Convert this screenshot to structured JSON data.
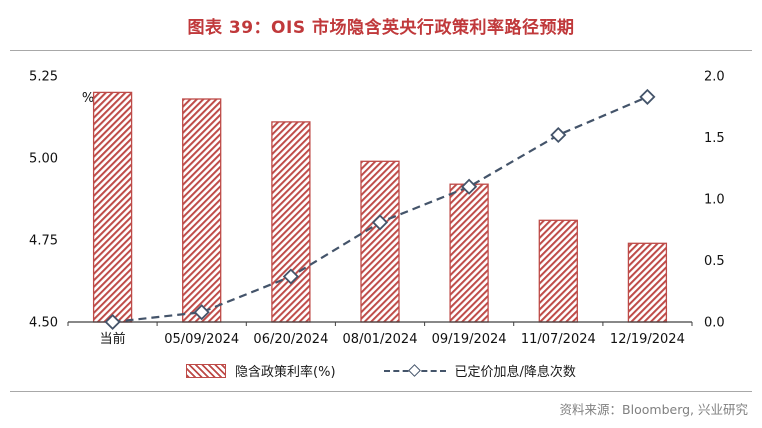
{
  "header": {
    "title": "图表 39：OIS 市场隐含英央行政策利率路径预期"
  },
  "chart_data": {
    "type": "combo",
    "categories": [
      "当前",
      "05/09/2024",
      "06/20/2024",
      "08/01/2024",
      "09/19/2024",
      "11/07/2024",
      "12/19/2024"
    ],
    "series": [
      {
        "name": "隐含政策利率(%)",
        "type": "bar",
        "axis": "left",
        "values": [
          5.2,
          5.18,
          5.11,
          4.99,
          4.92,
          4.81,
          4.74
        ]
      },
      {
        "name": "已定价加息/降息次数",
        "type": "line",
        "axis": "right",
        "values": [
          0.0,
          0.08,
          0.37,
          0.81,
          1.1,
          1.52,
          1.83
        ]
      }
    ],
    "left_axis": {
      "min": 4.5,
      "max": 5.25,
      "unit": "%",
      "ticks": [
        "5.25",
        "5.00",
        "4.75",
        "4.50"
      ]
    },
    "right_axis": {
      "min": 0.0,
      "max": 2.0,
      "ticks": [
        "2.0",
        "1.5",
        "1.0",
        "0.5",
        "0.0"
      ]
    },
    "grid": "off",
    "legend_position": "bottom",
    "colors": {
      "bar": "#BE4B48",
      "line": "#44546A",
      "title": "#C0393B"
    }
  },
  "legend": {
    "bar_label": "隐含政策利率(%)",
    "line_label": "已定价加息/降息次数"
  },
  "footer": {
    "source": "资料来源：Bloomberg, 兴业研究"
  }
}
